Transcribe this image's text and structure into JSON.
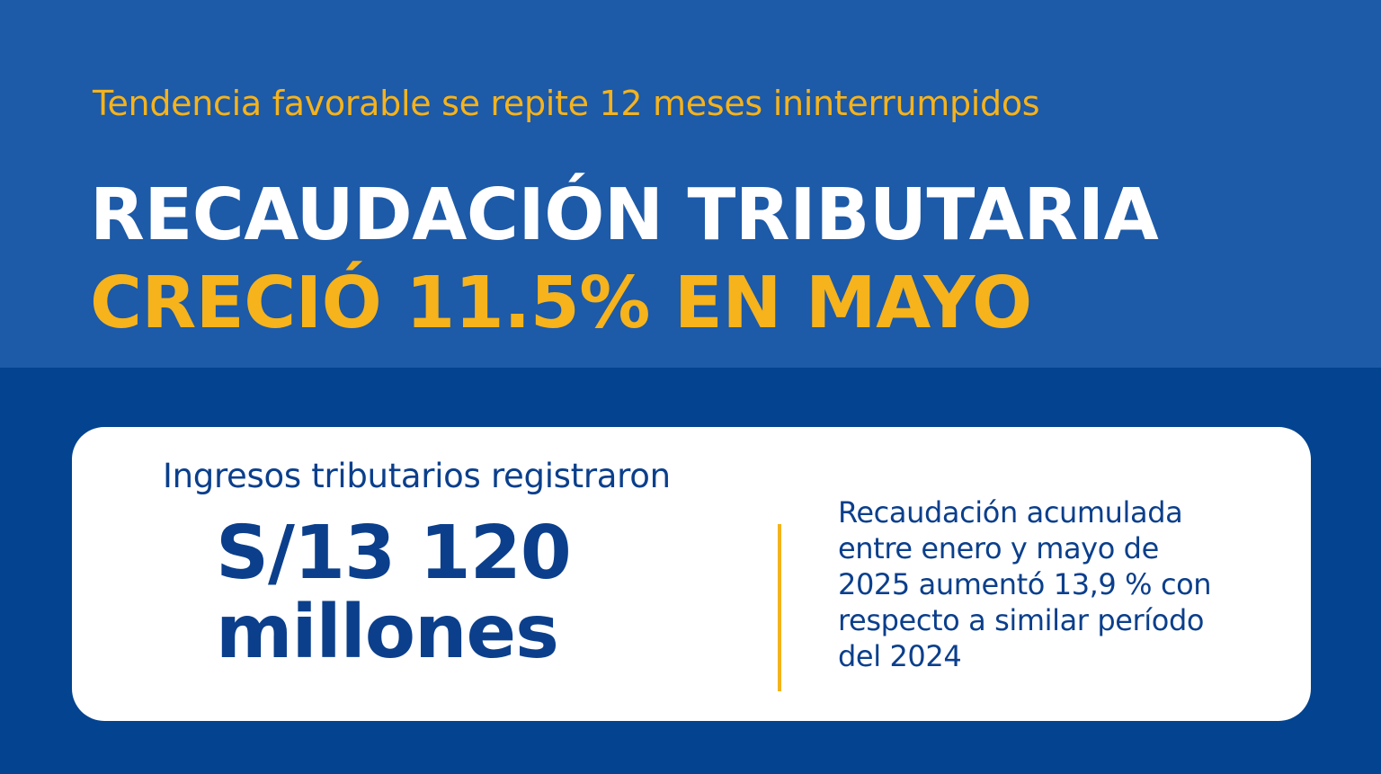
{
  "colors": {
    "top_band": "#1d5aa8",
    "bottom_band": "#03438f",
    "accent_yellow": "#f6b31b",
    "headline_white": "#ffffff",
    "card_background": "#ffffff",
    "card_text_blue": "#0b3f8c",
    "divider": "#f3b41b"
  },
  "header": {
    "subtitle": "Tendencia favorable se repite 12 meses ininterrumpidos",
    "headline_line1": "RECAUDACIÓN TRIBUTARIA",
    "headline_line2": "CRECIÓ 11.5% EN MAYO"
  },
  "card": {
    "left_label": "Ingresos tributarios registraron",
    "amount_line1": "S/13 120",
    "amount_line2": "millones",
    "right_lines": [
      "Recaudación acumulada",
      "entre enero y mayo de",
      "2025 aumentó 13,9 % con",
      "respecto a similar período",
      "del 2024"
    ]
  }
}
